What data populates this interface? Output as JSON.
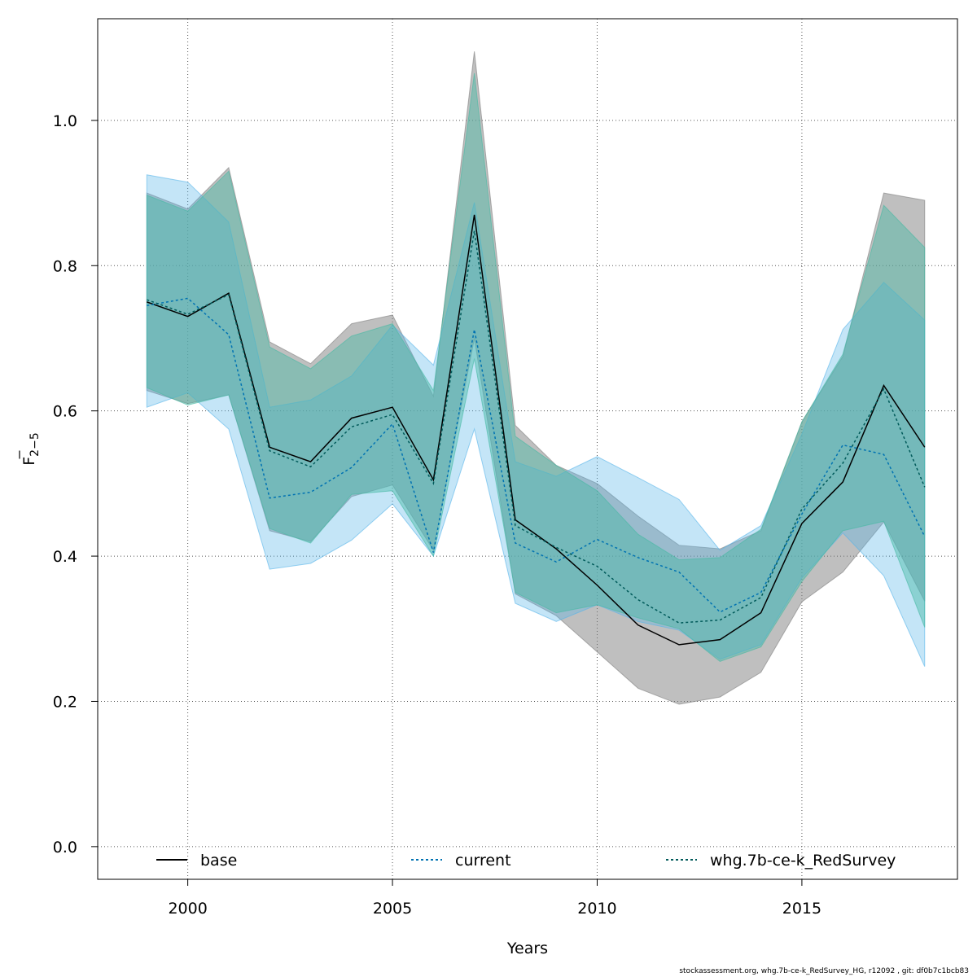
{
  "chart_data": {
    "type": "area",
    "xlabel": "Years",
    "ylabel_main": "F",
    "ylabel_sub": "2−5",
    "xlim": [
      1997.8,
      2018.8
    ],
    "ylim": [
      -0.045,
      1.14
    ],
    "xticks": [
      2000,
      2005,
      2010,
      2015
    ],
    "yticks": [
      0.0,
      0.2,
      0.4,
      0.6,
      0.8,
      1.0
    ],
    "ytick_labels": [
      "0.0",
      "0.2",
      "0.4",
      "0.6",
      "0.8",
      "1.0"
    ],
    "grid": true,
    "legend_position": "bottom",
    "x": [
      1999,
      2000,
      2001,
      2002,
      2003,
      2004,
      2005,
      2006,
      2007,
      2008,
      2009,
      2010,
      2011,
      2012,
      2013,
      2014,
      2015,
      2016,
      2017,
      2018
    ],
    "series": [
      {
        "name": "base",
        "line_color": "#000000",
        "band_color": "#7f7f7f",
        "band_opacity": 0.5,
        "dash": "",
        "values": [
          0.75,
          0.73,
          0.762,
          0.55,
          0.53,
          0.59,
          0.605,
          0.505,
          0.87,
          0.45,
          0.41,
          0.36,
          0.305,
          0.278,
          0.285,
          0.322,
          0.445,
          0.502,
          0.635,
          0.55
        ],
        "upper": [
          0.9,
          0.878,
          0.935,
          0.695,
          0.665,
          0.72,
          0.732,
          0.62,
          1.095,
          0.58,
          0.525,
          0.5,
          0.455,
          0.415,
          0.41,
          0.435,
          0.585,
          0.675,
          0.9,
          0.89
        ],
        "lower": [
          0.628,
          0.61,
          0.622,
          0.435,
          0.42,
          0.482,
          0.498,
          0.408,
          0.7,
          0.348,
          0.318,
          0.268,
          0.218,
          0.196,
          0.206,
          0.24,
          0.337,
          0.378,
          0.447,
          0.338
        ]
      },
      {
        "name": "current",
        "line_color": "#0072b2",
        "band_color": "#56b4e9",
        "band_opacity": 0.35,
        "dash": "3,3",
        "values": [
          0.745,
          0.755,
          0.705,
          0.48,
          0.488,
          0.522,
          0.582,
          0.405,
          0.712,
          0.418,
          0.392,
          0.423,
          0.398,
          0.378,
          0.323,
          0.35,
          0.458,
          0.553,
          0.54,
          0.427
        ],
        "upper": [
          0.925,
          0.915,
          0.86,
          0.605,
          0.615,
          0.648,
          0.718,
          0.663,
          0.887,
          0.53,
          0.51,
          0.537,
          0.508,
          0.478,
          0.408,
          0.442,
          0.568,
          0.712,
          0.777,
          0.725
        ],
        "lower": [
          0.605,
          0.625,
          0.575,
          0.382,
          0.39,
          0.422,
          0.472,
          0.4,
          0.575,
          0.335,
          0.31,
          0.333,
          0.31,
          0.298,
          0.258,
          0.278,
          0.37,
          0.432,
          0.373,
          0.248
        ]
      },
      {
        "name": "whg.7b-ce-k_RedSurvey",
        "line_color": "#005a5a",
        "band_color": "#46b9a4",
        "band_opacity": 0.45,
        "dash": "3,3",
        "values": [
          0.753,
          0.733,
          0.76,
          0.545,
          0.523,
          0.578,
          0.595,
          0.5,
          0.848,
          0.442,
          0.412,
          0.386,
          0.34,
          0.308,
          0.312,
          0.343,
          0.465,
          0.528,
          0.63,
          0.495
        ],
        "upper": [
          0.897,
          0.875,
          0.93,
          0.688,
          0.658,
          0.703,
          0.72,
          0.628,
          1.065,
          0.565,
          0.525,
          0.49,
          0.43,
          0.395,
          0.398,
          0.437,
          0.585,
          0.678,
          0.883,
          0.825
        ],
        "lower": [
          0.632,
          0.608,
          0.622,
          0.438,
          0.418,
          0.485,
          0.49,
          0.4,
          0.672,
          0.35,
          0.322,
          0.333,
          0.315,
          0.3,
          0.255,
          0.275,
          0.365,
          0.435,
          0.448,
          0.302
        ]
      }
    ]
  },
  "footer": "stockassessment.org, whg.7b-ce-k_RedSurvey_HG, r12092 , git: df0b7c1bcb83"
}
